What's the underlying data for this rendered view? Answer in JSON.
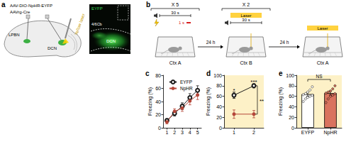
{
  "panel_labels": [
    "a",
    "b",
    "c",
    "d",
    "e"
  ],
  "panel_a": {
    "vectors": [
      "AAV-DIO-NpHR-EYFP",
      "AAVrg-Cre"
    ],
    "laser": "Yellow laser",
    "regions": [
      "LPBN",
      "DCN"
    ],
    "image": {
      "channel": "EYFP",
      "regions": [
        "4/6Cb",
        "DCN"
      ]
    }
  },
  "panel_b": {
    "sessions": [
      {
        "repeat": "X 5",
        "tone": "30 s",
        "shock": "1 s",
        "context": "Ctx A"
      },
      {
        "repeat": "X 2",
        "laser": "Laser",
        "tone": "30 s",
        "context": "Ctx B"
      },
      {
        "laser": "Laser",
        "context": "Ctx A"
      }
    ],
    "intervals": [
      "24 h",
      "24 h"
    ]
  },
  "chart_data": [
    {
      "type": "line",
      "y_label": "Freezing (%)",
      "x": [
        1,
        2,
        3,
        4,
        5
      ],
      "xlim": [
        0.5,
        5.5
      ],
      "xticks": [
        1,
        2,
        3,
        4,
        5
      ],
      "ylim": [
        0,
        80
      ],
      "yticks": [
        0,
        20,
        40,
        60,
        80
      ],
      "grid": false,
      "legend": "top-left",
      "series": [
        {
          "name": "EYFP",
          "color": "#1a1a1a",
          "marker": "hollow_circle",
          "values": [
            11,
            22,
            33,
            46,
            57
          ],
          "errors": [
            3,
            4,
            5,
            6,
            7
          ]
        },
        {
          "name": "NpHR",
          "color": "#b5473a",
          "marker": "circle",
          "values": [
            9,
            25,
            30,
            41,
            50
          ],
          "errors": [
            3,
            4,
            5,
            6,
            7
          ]
        }
      ]
    },
    {
      "type": "line",
      "y_label": "Freezing (%)",
      "x": [
        1,
        2
      ],
      "xlim": [
        0.5,
        2.5
      ],
      "xticks": [
        1,
        2
      ],
      "ylim": [
        0,
        100
      ],
      "yticks": [
        0,
        20,
        40,
        60,
        80,
        100
      ],
      "grid": false,
      "series": [
        {
          "name": "EYFP",
          "color": "#1a1a1a",
          "marker": "hollow_circle",
          "values": [
            62,
            80
          ],
          "errors": [
            6,
            4
          ]
        },
        {
          "name": "NpHR",
          "color": "#b5473a",
          "marker": "circle",
          "values": [
            26,
            26
          ],
          "errors": [
            8,
            7
          ]
        }
      ],
      "annotations": [
        {
          "text": "*",
          "x": 1,
          "y": 74
        },
        {
          "text": "***",
          "x": 2,
          "y": 90
        },
        {
          "text": "**",
          "x": 2.32,
          "y": 53,
          "bracket": [
            26,
            80
          ]
        }
      ]
    },
    {
      "type": "bar",
      "y_label": "Freezing (%)",
      "categories": [
        "EYFP",
        "NpHR"
      ],
      "values": [
        64,
        66
      ],
      "errors": [
        4,
        4
      ],
      "colors": [
        "#ffffff",
        "#d9735f"
      ],
      "points": [
        [
          50,
          55,
          58,
          60,
          62,
          63,
          65,
          68,
          72,
          78
        ],
        [
          48,
          55,
          60,
          62,
          65,
          66,
          68,
          70,
          74,
          80
        ]
      ],
      "ylim": [
        0,
        100
      ],
      "yticks": [
        0,
        20,
        40,
        60,
        80,
        100
      ],
      "grid": false,
      "annotations": [
        {
          "text": "NS",
          "y": 92,
          "bracket": [
            "EYFP",
            "NpHR"
          ]
        }
      ]
    }
  ]
}
